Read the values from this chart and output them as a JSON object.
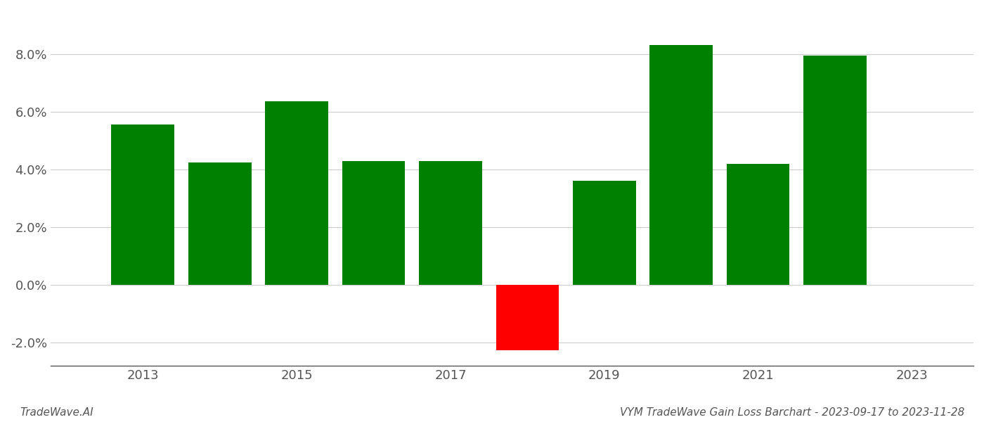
{
  "years": [
    2013,
    2014,
    2015,
    2016,
    2017,
    2018,
    2019,
    2020,
    2021,
    2022
  ],
  "values": [
    0.0555,
    0.0425,
    0.0635,
    0.043,
    0.043,
    -0.0225,
    0.036,
    0.083,
    0.042,
    0.0795
  ],
  "bar_colors": [
    "#008000",
    "#008000",
    "#008000",
    "#008000",
    "#008000",
    "#ff0000",
    "#008000",
    "#008000",
    "#008000",
    "#008000"
  ],
  "title": "VYM TradeWave Gain Loss Barchart - 2023-09-17 to 2023-11-28",
  "footer_left": "TradeWave.AI",
  "ylim": [
    -0.028,
    0.095
  ],
  "yticks": [
    -0.02,
    0.0,
    0.02,
    0.04,
    0.06,
    0.08
  ],
  "xticks": [
    2013,
    2015,
    2017,
    2019,
    2021,
    2023
  ],
  "xlim": [
    2011.8,
    2023.8
  ],
  "background_color": "#ffffff",
  "grid_color": "#cccccc",
  "title_fontsize": 11,
  "footer_fontsize": 11,
  "tick_fontsize": 13,
  "bar_width": 0.82
}
